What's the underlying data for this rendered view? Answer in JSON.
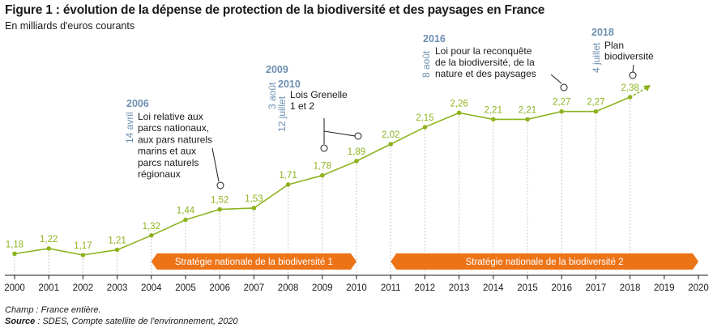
{
  "title": "Figure 1 : évolution de la dépense de protection de la biodiversité et des paysages en France",
  "subtitle": "En milliards d'euros courants",
  "notes": {
    "champ": "Champ : France entière.",
    "source_label": "Source",
    "source_text": " : SDES, Compte satellite de l'environnement, 2020"
  },
  "colors": {
    "line": "#8db31f",
    "band": "#ed7317",
    "annotation": "#6d8fb0",
    "grid": "#c8c8c8"
  },
  "chart_data": {
    "type": "line",
    "x": [
      2000,
      2001,
      2002,
      2003,
      2004,
      2005,
      2006,
      2007,
      2008,
      2009,
      2010,
      2011,
      2012,
      2013,
      2014,
      2015,
      2016,
      2017,
      2018
    ],
    "values": [
      1.18,
      1.22,
      1.17,
      1.21,
      1.32,
      1.44,
      1.52,
      1.53,
      1.71,
      1.78,
      1.89,
      2.02,
      2.15,
      2.26,
      2.21,
      2.21,
      2.27,
      2.27,
      2.38
    ],
    "value_labels": [
      "1,18",
      "1,22",
      "1,17",
      "1,21",
      "1,32",
      "1,44",
      "1,52",
      "1,53",
      "1,71",
      "1,78",
      "1,89",
      "2,02",
      "2,15",
      "2,26",
      "2,21",
      "2,21",
      "2,27",
      "2,27",
      "2,38"
    ],
    "x_ticks": [
      "2000",
      "2001",
      "2002",
      "2003",
      "2004",
      "2005",
      "2006",
      "2007",
      "2008",
      "2009",
      "2010",
      "2011",
      "2012",
      "2013",
      "2014",
      "2015",
      "2016",
      "2017",
      "2018",
      "2019",
      "2020"
    ],
    "xlim": [
      2000,
      2020
    ],
    "ylim": [
      1.0,
      2.5
    ],
    "trend_arrow": {
      "from": 2018,
      "to": 2018.6,
      "style": "dashed"
    },
    "grid": "vertical dashed",
    "bands": [
      {
        "label": "Stratégie nationale de la biodiversité 1",
        "start": 2004,
        "end": 2010
      },
      {
        "label": "Stratégie nationale de la biodiversité 2",
        "start": 2011,
        "end": 2020
      }
    ],
    "annotations": [
      {
        "year": "2006",
        "date": "14 avril",
        "text": [
          "Loi relative aux",
          "parcs nationaux,",
          "aux pars naturels",
          "marins et aux",
          "parcs naturels",
          "régionaux"
        ],
        "marker_x": 2006
      },
      {
        "year": "2009",
        "date": "3 août",
        "text": [],
        "marker_x": 2009
      },
      {
        "year": "2010",
        "date": "12 juillet",
        "text": [
          "Lois Grenelle",
          "1 et 2"
        ],
        "marker_x": 2010
      },
      {
        "year": "2016",
        "date": "8 août",
        "text": [
          "Loi pour la reconquête",
          "de la biodiversité, de la",
          "nature et des paysages"
        ],
        "marker_x": 2016
      },
      {
        "year": "2018",
        "date": "4 juillet",
        "text": [
          "Plan",
          "biodiversité"
        ],
        "marker_x": 2018
      }
    ]
  }
}
